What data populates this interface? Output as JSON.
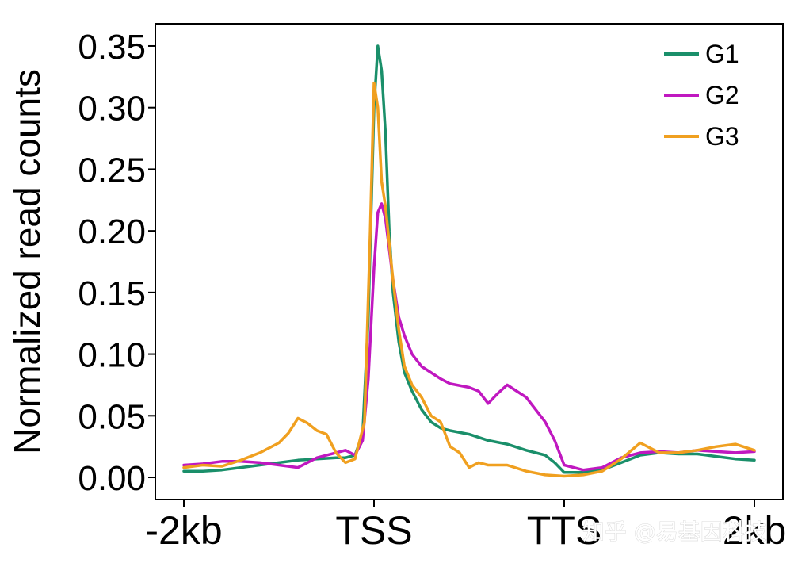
{
  "watermark": "知乎 @易基因科技",
  "chart_data": {
    "type": "line",
    "title": "",
    "xlabel": "",
    "ylabel": "Normalized read counts",
    "x_ticks": [
      {
        "pos": 0,
        "label": "-2kb"
      },
      {
        "pos": 1,
        "label": "TSS"
      },
      {
        "pos": 2,
        "label": "TTS"
      },
      {
        "pos": 3,
        "label": "2kb"
      }
    ],
    "xlim": [
      -0.15,
      3.15
    ],
    "ylim": [
      -0.018,
      0.368
    ],
    "y_ticks": [
      "0.00",
      "0.05",
      "0.10",
      "0.15",
      "0.20",
      "0.25",
      "0.30",
      "0.35"
    ],
    "legend_position": "top-right",
    "grid": false,
    "series": [
      {
        "name": "G1",
        "color": "#1a8f6a",
        "x": [
          0,
          0.1,
          0.2,
          0.3,
          0.4,
          0.5,
          0.6,
          0.7,
          0.8,
          0.85,
          0.9,
          0.94,
          0.97,
          1.0,
          1.02,
          1.04,
          1.06,
          1.08,
          1.1,
          1.13,
          1.16,
          1.2,
          1.25,
          1.3,
          1.35,
          1.4,
          1.5,
          1.6,
          1.7,
          1.8,
          1.9,
          1.95,
          2.0,
          2.1,
          2.2,
          2.3,
          2.4,
          2.5,
          2.6,
          2.7,
          2.8,
          2.9,
          3.0
        ],
        "values": [
          0.005,
          0.005,
          0.006,
          0.008,
          0.01,
          0.012,
          0.014,
          0.015,
          0.016,
          0.016,
          0.018,
          0.035,
          0.13,
          0.3,
          0.35,
          0.33,
          0.28,
          0.2,
          0.15,
          0.11,
          0.085,
          0.07,
          0.055,
          0.045,
          0.04,
          0.038,
          0.035,
          0.03,
          0.027,
          0.022,
          0.018,
          0.012,
          0.004,
          0.004,
          0.006,
          0.012,
          0.018,
          0.02,
          0.019,
          0.019,
          0.017,
          0.015,
          0.014
        ]
      },
      {
        "name": "G2",
        "color": "#c018c0",
        "x": [
          0,
          0.1,
          0.2,
          0.3,
          0.4,
          0.5,
          0.6,
          0.7,
          0.8,
          0.85,
          0.9,
          0.94,
          0.97,
          1.0,
          1.02,
          1.04,
          1.06,
          1.08,
          1.1,
          1.13,
          1.16,
          1.2,
          1.25,
          1.3,
          1.35,
          1.4,
          1.5,
          1.55,
          1.6,
          1.65,
          1.7,
          1.8,
          1.9,
          1.95,
          2.0,
          2.1,
          2.2,
          2.3,
          2.4,
          2.5,
          2.6,
          2.7,
          2.8,
          2.9,
          3.0
        ],
        "values": [
          0.01,
          0.011,
          0.013,
          0.013,
          0.012,
          0.01,
          0.008,
          0.016,
          0.02,
          0.022,
          0.018,
          0.03,
          0.08,
          0.17,
          0.215,
          0.222,
          0.21,
          0.185,
          0.16,
          0.13,
          0.115,
          0.1,
          0.09,
          0.085,
          0.08,
          0.076,
          0.073,
          0.07,
          0.06,
          0.068,
          0.075,
          0.065,
          0.045,
          0.03,
          0.01,
          0.006,
          0.008,
          0.016,
          0.02,
          0.021,
          0.02,
          0.022,
          0.021,
          0.02,
          0.021
        ]
      },
      {
        "name": "G3",
        "color": "#f0a020",
        "x": [
          0,
          0.1,
          0.2,
          0.3,
          0.4,
          0.5,
          0.55,
          0.6,
          0.65,
          0.7,
          0.75,
          0.8,
          0.85,
          0.9,
          0.95,
          0.98,
          1.0,
          1.02,
          1.04,
          1.06,
          1.08,
          1.1,
          1.13,
          1.16,
          1.2,
          1.25,
          1.3,
          1.35,
          1.4,
          1.45,
          1.5,
          1.55,
          1.6,
          1.7,
          1.8,
          1.9,
          2.0,
          2.1,
          2.2,
          2.3,
          2.4,
          2.5,
          2.6,
          2.7,
          2.8,
          2.9,
          3.0
        ],
        "values": [
          0.008,
          0.01,
          0.009,
          0.014,
          0.02,
          0.028,
          0.036,
          0.048,
          0.044,
          0.038,
          0.035,
          0.02,
          0.012,
          0.015,
          0.045,
          0.2,
          0.32,
          0.3,
          0.24,
          0.22,
          0.19,
          0.16,
          0.12,
          0.09,
          0.075,
          0.065,
          0.05,
          0.045,
          0.025,
          0.02,
          0.008,
          0.012,
          0.01,
          0.01,
          0.005,
          0.002,
          0.001,
          0.002,
          0.005,
          0.015,
          0.028,
          0.02,
          0.02,
          0.022,
          0.025,
          0.027,
          0.022
        ]
      }
    ]
  }
}
